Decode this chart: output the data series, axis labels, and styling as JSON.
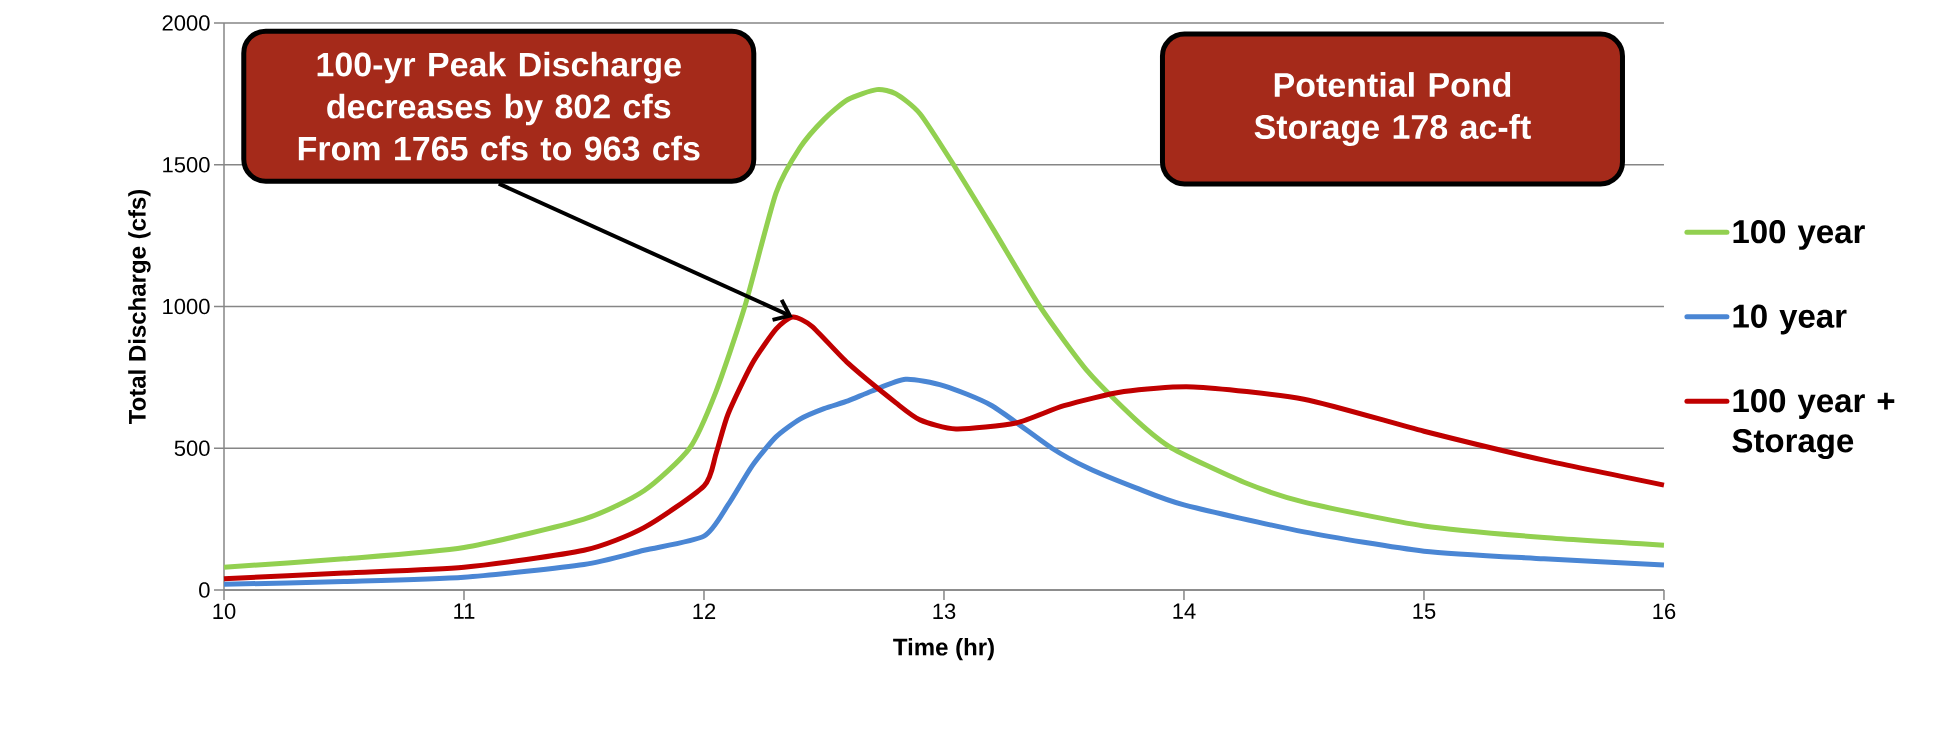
{
  "chart_data": {
    "type": "line",
    "xlabel": "Time (hr)",
    "ylabel": "Total Discharge (cfs)",
    "xlim": [
      10,
      16
    ],
    "xticks": [
      10,
      11,
      12,
      13,
      14,
      15,
      16
    ],
    "ylim": [
      0,
      2000
    ],
    "yticks": [
      0,
      500,
      1000,
      1500,
      2000
    ],
    "grid": "y",
    "legend": "right",
    "marker": "none",
    "line_style": "solid",
    "series": [
      {
        "name": "100 year",
        "color": "#92d050",
        "x": [
          10,
          10.5,
          11,
          11.5,
          11.75,
          11.94,
          12.05,
          12.17,
          12.3,
          12.4,
          12.5,
          12.6,
          12.72,
          12.8,
          12.9,
          13.04,
          13.2,
          13.4,
          13.6,
          13.8,
          13.95,
          14.25,
          14.5,
          15,
          15.5,
          16
        ],
        "values": [
          80,
          110,
          150,
          250,
          350,
          500,
          700,
          1000,
          1400,
          1560,
          1660,
          1730,
          1765,
          1750,
          1680,
          1500,
          1280,
          1000,
          770,
          600,
          500,
          380,
          310,
          226,
          185,
          158
        ]
      },
      {
        "name": "10 year",
        "color": "#4a86d4",
        "x": [
          10,
          10.5,
          11,
          11.5,
          11.75,
          12,
          12.1,
          12.2,
          12.3,
          12.4,
          12.5,
          12.6,
          12.7,
          12.84,
          13,
          13.2,
          13.45,
          13.6,
          13.8,
          14,
          14.5,
          15,
          15.5,
          16
        ],
        "values": [
          20,
          30,
          45,
          90,
          140,
          190,
          300,
          437,
          540,
          603,
          640,
          667,
          702,
          743,
          720,
          650,
          500,
          430,
          360,
          300,
          205,
          137,
          110,
          88
        ]
      },
      {
        "name": "100 year + Storage",
        "color": "#c00000",
        "x": [
          10,
          10.5,
          11,
          11.5,
          11.75,
          12,
          12.05,
          12.1,
          12.2,
          12.3,
          12.37,
          12.45,
          12.6,
          12.8,
          12.9,
          13.05,
          13.3,
          13.5,
          13.75,
          14.04,
          14.5,
          15,
          15.5,
          16
        ],
        "values": [
          40,
          60,
          80,
          140,
          220,
          367,
          480,
          620,
          797,
          920,
          963,
          930,
          800,
          660,
          600,
          568,
          589,
          650,
          700,
          716,
          673,
          560,
          458,
          370
        ]
      }
    ],
    "annotations": [
      {
        "text": "100-yr Peak Discharge decreases by 802 cfs From 1765 cfs to 963 cfs",
        "x": 12.37,
        "y": 963
      },
      "Potential Pond Storage 178 ac-ft"
    ]
  }
}
